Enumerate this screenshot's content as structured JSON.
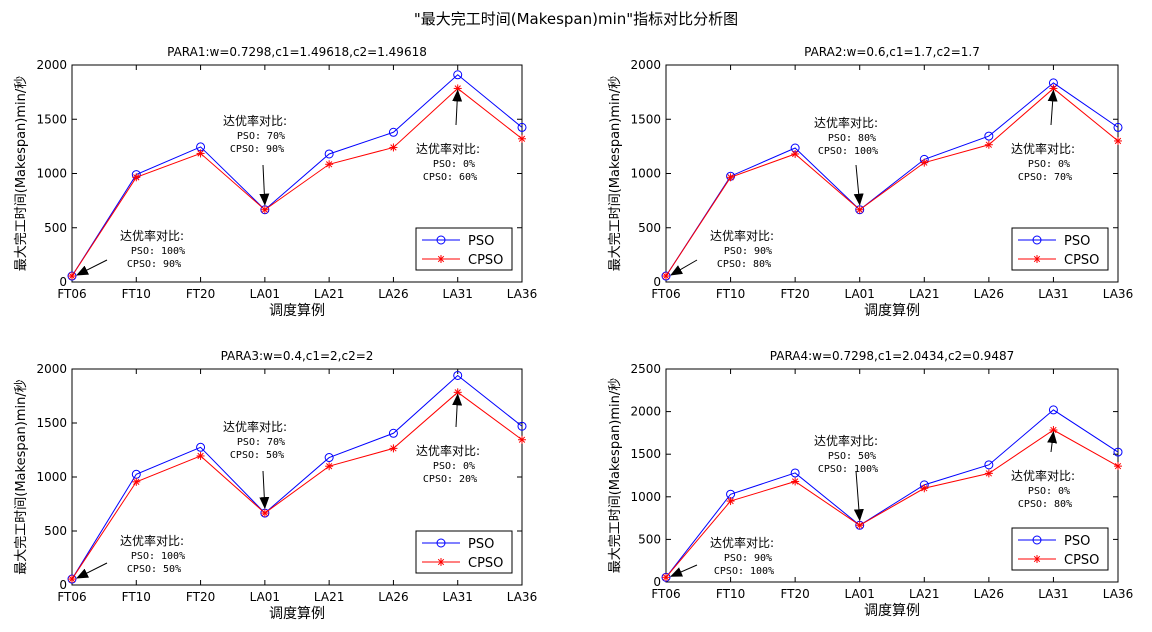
{
  "figure": {
    "title": "\"最大完工时间(Makespan)min\"指标对比分析图"
  },
  "colors": {
    "pso": "#0000ff",
    "cpso": "#ff0000",
    "axis": "#000000"
  },
  "chart_data": [
    {
      "type": "line",
      "title": "PARA1:w=0.7298,c1=1.49618,c2=1.49618",
      "xlabel": "调度算例",
      "ylabel": "最大完工时间(Makespan)min/秒",
      "categories": [
        "FT06",
        "FT10",
        "FT20",
        "LA01",
        "LA21",
        "LA26",
        "LA31",
        "LA36"
      ],
      "ylim": [
        0,
        2000
      ],
      "yticks": [
        0,
        500,
        1000,
        1500,
        2000
      ],
      "legend": "bottom-right",
      "series": [
        {
          "name": "PSO",
          "values": [
            55,
            990,
            1245,
            666,
            1180,
            1380,
            1910,
            1425
          ]
        },
        {
          "name": "CPSO",
          "values": [
            55,
            965,
            1185,
            666,
            1085,
            1240,
            1784,
            1320
          ]
        }
      ],
      "annotations": [
        {
          "lines": [
            "达优率对比:",
            "PSO: 100%",
            "CPSO: 90%"
          ],
          "target_index": 0
        },
        {
          "lines": [
            "达优率对比:",
            "PSO: 70%",
            "CPSO: 90%"
          ],
          "target_index": 3
        },
        {
          "lines": [
            "达优率对比:",
            "PSO: 0%",
            "CPSO: 60%"
          ],
          "target_index": 6
        }
      ]
    },
    {
      "type": "line",
      "title": "PARA2:w=0.6,c1=1.7,c2=1.7",
      "xlabel": "调度算例",
      "ylabel": "最大完工时间(Makespan)min/秒",
      "categories": [
        "FT06",
        "FT10",
        "FT20",
        "LA01",
        "LA21",
        "LA26",
        "LA31",
        "LA36"
      ],
      "ylim": [
        0,
        2000
      ],
      "yticks": [
        0,
        500,
        1000,
        1500,
        2000
      ],
      "legend": "bottom-right",
      "series": [
        {
          "name": "PSO",
          "values": [
            55,
            975,
            1235,
            666,
            1130,
            1345,
            1835,
            1425
          ]
        },
        {
          "name": "CPSO",
          "values": [
            55,
            965,
            1180,
            666,
            1100,
            1265,
            1784,
            1300
          ]
        }
      ],
      "annotations": [
        {
          "lines": [
            "达优率对比:",
            "PSO: 90%",
            "CPSO: 80%"
          ],
          "target_index": 0
        },
        {
          "lines": [
            "达优率对比:",
            "PSO: 80%",
            "CPSO: 100%"
          ],
          "target_index": 3
        },
        {
          "lines": [
            "达优率对比:",
            "PSO: 0%",
            "CPSO: 70%"
          ],
          "target_index": 6
        }
      ]
    },
    {
      "type": "line",
      "title": "PARA3:w=0.4,c1=2,c2=2",
      "xlabel": "调度算例",
      "ylabel": "最大完工时间(Makespan)min/秒",
      "categories": [
        "FT06",
        "FT10",
        "FT20",
        "LA01",
        "LA21",
        "LA26",
        "LA31",
        "LA36"
      ],
      "ylim": [
        0,
        2000
      ],
      "yticks": [
        0,
        500,
        1000,
        1500,
        2000
      ],
      "legend": "bottom-right",
      "series": [
        {
          "name": "PSO",
          "values": [
            55,
            1025,
            1275,
            666,
            1180,
            1405,
            1940,
            1470
          ]
        },
        {
          "name": "CPSO",
          "values": [
            55,
            955,
            1195,
            666,
            1100,
            1265,
            1784,
            1345
          ]
        }
      ],
      "annotations": [
        {
          "lines": [
            "达优率对比:",
            "PSO: 100%",
            "CPSO: 50%"
          ],
          "target_index": 0
        },
        {
          "lines": [
            "达优率对比:",
            "PSO: 70%",
            "CPSO: 50%"
          ],
          "target_index": 3
        },
        {
          "lines": [
            "达优率对比:",
            "PSO: 0%",
            "CPSO: 20%"
          ],
          "target_index": 6
        }
      ]
    },
    {
      "type": "line",
      "title": "PARA4:w=0.7298,c1=2.0434,c2=0.9487",
      "xlabel": "调度算例",
      "ylabel": "最大完工时间(Makespan)min/秒",
      "categories": [
        "FT06",
        "FT10",
        "FT20",
        "LA01",
        "LA21",
        "LA26",
        "LA31",
        "LA36"
      ],
      "ylim": [
        0,
        2500
      ],
      "yticks": [
        0,
        500,
        1000,
        1500,
        2000,
        2500
      ],
      "legend": "bottom-right",
      "series": [
        {
          "name": "PSO",
          "values": [
            55,
            1030,
            1280,
            666,
            1140,
            1375,
            2020,
            1525
          ]
        },
        {
          "name": "CPSO",
          "values": [
            55,
            950,
            1180,
            666,
            1100,
            1275,
            1784,
            1360
          ]
        }
      ],
      "annotations": [
        {
          "lines": [
            "达优率对比:",
            "PSO: 90%",
            "CPSO: 100%"
          ],
          "target_index": 0
        },
        {
          "lines": [
            "达优率对比:",
            "PSO: 50%",
            "CPSO: 100%"
          ],
          "target_index": 3
        },
        {
          "lines": [
            "达优率对比:",
            "PSO: 0%",
            "CPSO: 80%"
          ],
          "target_index": 6
        }
      ]
    }
  ]
}
